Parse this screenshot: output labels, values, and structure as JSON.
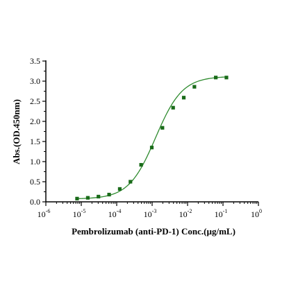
{
  "chart_data": {
    "type": "scatter",
    "title": "",
    "xlabel": "Pembrolizumab (anti-PD-1) Conc.(µg/mL)",
    "ylabel": "Abs.(OD.450nm)",
    "x_scale": "log",
    "xlim": [
      1e-06,
      1
    ],
    "ylim": [
      0,
      3.5
    ],
    "x_ticks": [
      {
        "base": "10",
        "exp": "-6"
      },
      {
        "base": "10",
        "exp": "-5"
      },
      {
        "base": "10",
        "exp": "-4"
      },
      {
        "base": "10",
        "exp": "-3"
      },
      {
        "base": "10",
        "exp": "-2"
      },
      {
        "base": "10",
        "exp": "-1"
      },
      {
        "base": "10",
        "exp": "0"
      }
    ],
    "y_ticks": [
      "0.0",
      "0.5",
      "1.0",
      "1.5",
      "2.0",
      "2.5",
      "3.0",
      "3.5"
    ],
    "grid": false,
    "legend": "none",
    "series": [
      {
        "points": [
          {
            "x": 7.6e-06,
            "y": 0.08
          },
          {
            "x": 1.53e-05,
            "y": 0.1
          },
          {
            "x": 3.05e-05,
            "y": 0.13
          },
          {
            "x": 6.1e-05,
            "y": 0.18
          },
          {
            "x": 0.000122,
            "y": 0.32
          },
          {
            "x": 0.000244,
            "y": 0.5
          },
          {
            "x": 0.000488,
            "y": 0.92
          },
          {
            "x": 0.000977,
            "y": 1.35
          },
          {
            "x": 0.00195,
            "y": 1.84
          },
          {
            "x": 0.00391,
            "y": 2.34
          },
          {
            "x": 0.00781,
            "y": 2.59
          },
          {
            "x": 0.0156,
            "y": 2.86
          },
          {
            "x": 0.0625,
            "y": 3.09
          },
          {
            "x": 0.125,
            "y": 3.09
          }
        ],
        "fit": {
          "model": "4PL",
          "bottom": 0.07,
          "top": 3.12,
          "ec50": 0.00125,
          "hill": 1.15
        }
      }
    ],
    "colors": {
      "marker": "#1a6b1a",
      "curve": "#2e8b2e",
      "axis": "#000000"
    }
  }
}
